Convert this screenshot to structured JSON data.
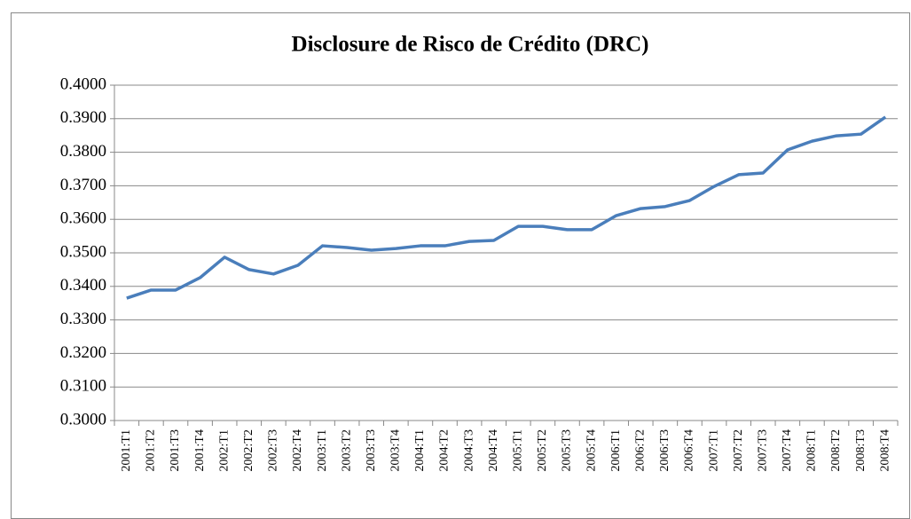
{
  "chart_data": {
    "type": "line",
    "title": "Disclosure de Risco de Crédito (DRC)",
    "categories": [
      "2001:T1",
      "2001:T2",
      "2001:T3",
      "2001:T4",
      "2002:T1",
      "2002:T2",
      "2002:T3",
      "2002:T4",
      "2003:T1",
      "2003:T2",
      "2003:T3",
      "2003:T4",
      "2004:T1",
      "2004:T2",
      "2004:T3",
      "2004:T4",
      "2005:T1",
      "2005:T2",
      "2005:T3",
      "2005:T4",
      "2006:T1",
      "2006:T2",
      "2006:T3",
      "2006:T4",
      "2007:T1",
      "2007:T2",
      "2007:T3",
      "2007:T4",
      "2008:T1",
      "2008:T2",
      "2008:T3",
      "2008:T4"
    ],
    "values": [
      0.3365,
      0.3389,
      0.3389,
      0.3426,
      0.3487,
      0.345,
      0.3437,
      0.3463,
      0.3521,
      0.3516,
      0.3508,
      0.3513,
      0.3521,
      0.3521,
      0.3534,
      0.3537,
      0.3579,
      0.3579,
      0.3569,
      0.3569,
      0.3611,
      0.3632,
      0.3638,
      0.3656,
      0.3698,
      0.3733,
      0.3738,
      0.3807,
      0.3833,
      0.3849,
      0.3854,
      0.3905
    ],
    "color": "#4a7ebb",
    "ylim": [
      0.3,
      0.4
    ],
    "yticks": [
      {
        "value": 0.3,
        "label": "0.3000"
      },
      {
        "value": 0.31,
        "label": "0.3100"
      },
      {
        "value": 0.32,
        "label": "0.3200"
      },
      {
        "value": 0.33,
        "label": "0.3300"
      },
      {
        "value": 0.34,
        "label": "0.3400"
      },
      {
        "value": 0.35,
        "label": "0.3500"
      },
      {
        "value": 0.36,
        "label": "0.3600"
      },
      {
        "value": 0.37,
        "label": "0.3700"
      },
      {
        "value": 0.38,
        "label": "0.3800"
      },
      {
        "value": 0.39,
        "label": "0.3900"
      },
      {
        "value": 0.4,
        "label": "0.4000"
      }
    ],
    "grid": true
  }
}
